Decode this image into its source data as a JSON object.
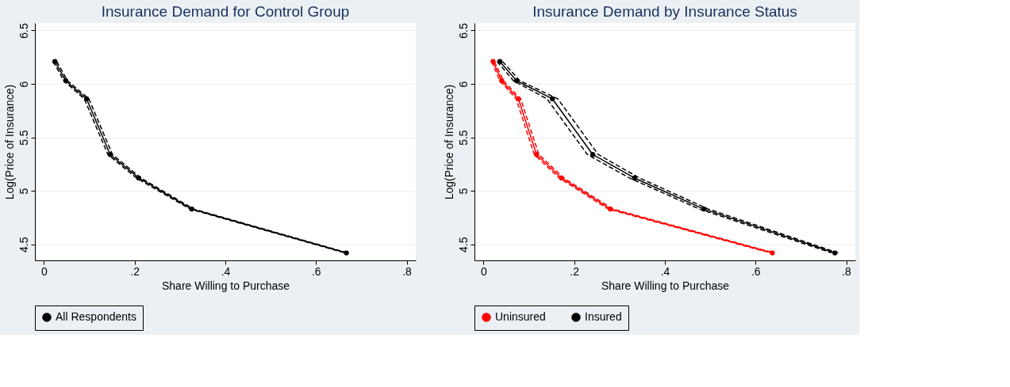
{
  "chart_data": [
    {
      "type": "line",
      "title": "Insurance Demand for Control Group",
      "xlabel": "Share Willing to Purchase",
      "ylabel": "Log(Price of Insurance)",
      "xlim": [
        -0.02,
        0.82
      ],
      "ylim": [
        4.35,
        6.57
      ],
      "xticks": [
        0,
        {
          "value": 0.2,
          "label": ".2"
        },
        {
          "value": 0.4,
          "label": ".4"
        },
        {
          "value": 0.6,
          "label": ".6"
        },
        {
          "value": 0.8,
          "label": ".8"
        }
      ],
      "yticks": [
        4.5,
        5,
        5.5,
        6,
        6.5
      ],
      "grid": "y",
      "legend": "bottom",
      "marker": "circle",
      "series": [
        {
          "name": "All Respondents",
          "color": "#000000",
          "line_style": "solid",
          "x": [
            0.024,
            0.048,
            0.094,
            0.146,
            0.209,
            0.326,
            0.667
          ],
          "values": [
            6.21,
            6.03,
            5.86,
            5.34,
            5.12,
            4.83,
            4.42
          ]
        },
        {
          "color": "#000000",
          "line_style": "dashed",
          "marker": "none",
          "x": [
            0.02,
            0.044,
            0.089,
            0.141,
            0.204,
            0.322,
            0.664
          ],
          "values": [
            6.21,
            6.03,
            5.86,
            5.34,
            5.12,
            4.83,
            4.42
          ]
        },
        {
          "color": "#000000",
          "line_style": "dashed",
          "marker": "none",
          "x": [
            0.028,
            0.052,
            0.099,
            0.151,
            0.214,
            0.33,
            0.67
          ],
          "values": [
            6.21,
            6.03,
            5.86,
            5.34,
            5.12,
            4.83,
            4.42
          ]
        }
      ]
    },
    {
      "type": "line",
      "title": "Insurance Demand by Insurance Status",
      "xlabel": "Share Willing to Purchase",
      "ylabel": "Log(Price of Insurance)",
      "xlim": [
        -0.02,
        0.82
      ],
      "ylim": [
        4.35,
        6.57
      ],
      "xticks": [
        0,
        {
          "value": 0.2,
          "label": ".2"
        },
        {
          "value": 0.4,
          "label": ".4"
        },
        {
          "value": 0.6,
          "label": ".6"
        },
        {
          "value": 0.8,
          "label": ".8"
        }
      ],
      "yticks": [
        4.5,
        5,
        5.5,
        6,
        6.5
      ],
      "grid": "y",
      "legend": "bottom",
      "marker": "circle",
      "series": [
        {
          "name": "Uninsured",
          "color": "#ff0000",
          "line_style": "solid",
          "x": [
            0.021,
            0.04,
            0.077,
            0.117,
            0.172,
            0.28,
            0.637
          ],
          "values": [
            6.21,
            6.03,
            5.86,
            5.34,
            5.12,
            4.83,
            4.42
          ]
        },
        {
          "color": "#ff0000",
          "line_style": "dashed",
          "marker": "none",
          "x": [
            0.018,
            0.036,
            0.072,
            0.112,
            0.167,
            0.275,
            0.633
          ],
          "values": [
            6.21,
            6.03,
            5.86,
            5.34,
            5.12,
            4.83,
            4.42
          ]
        },
        {
          "color": "#ff0000",
          "line_style": "dashed",
          "marker": "none",
          "x": [
            0.024,
            0.044,
            0.082,
            0.122,
            0.177,
            0.285,
            0.641
          ],
          "values": [
            6.21,
            6.03,
            5.86,
            5.34,
            5.12,
            4.83,
            4.42
          ]
        },
        {
          "name": "Insured",
          "color": "#000000",
          "line_style": "solid",
          "x": [
            0.036,
            0.073,
            0.152,
            0.241,
            0.333,
            0.486,
            0.775
          ],
          "values": [
            6.21,
            6.03,
            5.86,
            5.34,
            5.12,
            4.83,
            4.42
          ]
        },
        {
          "color": "#000000",
          "line_style": "dashed",
          "marker": "none",
          "x": [
            0.03,
            0.066,
            0.14,
            0.229,
            0.322,
            0.476,
            0.768
          ],
          "values": [
            6.21,
            6.03,
            5.86,
            5.34,
            5.12,
            4.83,
            4.42
          ]
        },
        {
          "color": "#000000",
          "line_style": "dashed",
          "marker": "none",
          "x": [
            0.042,
            0.08,
            0.164,
            0.253,
            0.344,
            0.496,
            0.782
          ],
          "values": [
            6.21,
            6.03,
            5.86,
            5.34,
            5.12,
            4.83,
            4.42
          ]
        }
      ]
    }
  ]
}
